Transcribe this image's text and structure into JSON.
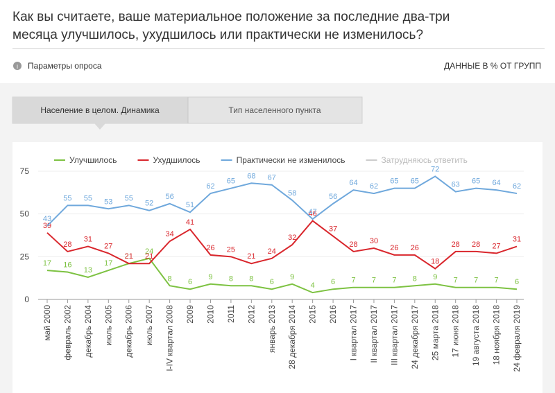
{
  "header": {
    "title_lines": [
      "Как вы считаете, ваше материальное положение за последние два-три",
      "месяца улучшилось, ухудшилось или практически не изменилось?"
    ],
    "params": "Параметры опроса",
    "units_note": "ДАННЫЕ В % ОТ ГРУПП"
  },
  "tabs": [
    "Население в целом. Динамика",
    "Тип населенного пункта"
  ],
  "chart_data": {
    "type": "line",
    "categories": [
      "май 2000",
      "февраль 2002",
      "декабрь 2004",
      "июль 2005",
      "декабрь 2006",
      "июль 2007",
      "I-IV квартал 2008",
      "2009",
      "2010",
      "2011",
      "2012",
      "январь 2013",
      "28 декабря 2014",
      "2015",
      "2016",
      "I квартал 2017",
      "II квартал 2017",
      "III квартал 2017",
      "24 декабря 2017",
      "25 марта 2018",
      "17 июня 2018",
      "19 августа 2018",
      "18 ноября 2018",
      "24 февраля 2019"
    ],
    "series": [
      {
        "name": "Улучшилось",
        "color": "#7dc242",
        "values": [
          17,
          16,
          13,
          17,
          21,
          24,
          8,
          6,
          9,
          8,
          8,
          6,
          9,
          4,
          6,
          7,
          7,
          7,
          8,
          9,
          7,
          7,
          7,
          6
        ]
      },
      {
        "name": "Ухудшилось",
        "color": "#d9262c",
        "values": [
          39,
          28,
          31,
          27,
          21,
          21,
          34,
          41,
          26,
          25,
          21,
          24,
          32,
          46,
          37,
          28,
          30,
          26,
          26,
          18,
          28,
          28,
          27,
          31
        ]
      },
      {
        "name": "Практически не изменилось",
        "color": "#6fa8dc",
        "values": [
          43,
          55,
          55,
          53,
          55,
          52,
          56,
          51,
          62,
          65,
          68,
          67,
          58,
          47,
          56,
          64,
          62,
          65,
          65,
          72,
          63,
          65,
          64,
          62
        ]
      },
      {
        "name": "Затрудняюсь ответить",
        "color": "#cccccc",
        "hidden": true
      }
    ],
    "ylim": [
      0,
      75
    ],
    "yticks": [
      0,
      25,
      50,
      75
    ]
  }
}
